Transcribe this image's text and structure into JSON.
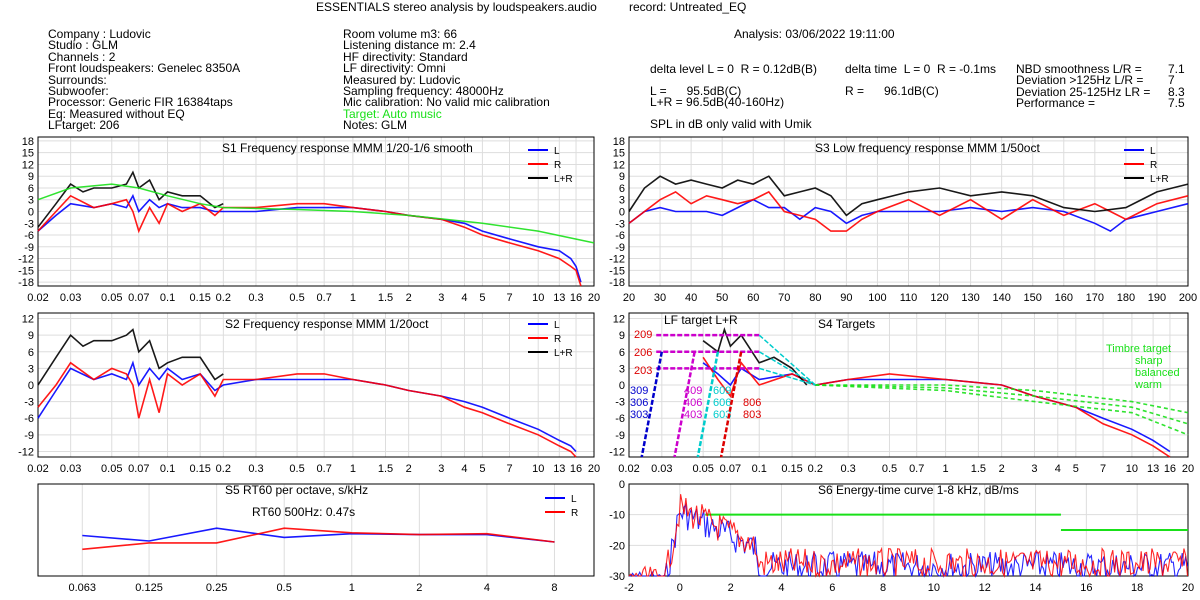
{
  "header": {
    "title": "ESSENTIALS stereo analysis by loudspeakers.audio",
    "record": "record: Untreated_EQ",
    "analysis": "Analysis: 03/06/2022 19:11:00",
    "col1": [
      "Company : Ludovic",
      "Studio : GLM",
      "Channels : 2",
      "Front loudspeakers: Genelec 8350A",
      "Surrounds:",
      "Subwoofer:",
      "Processor: Generic FIR 16384taps",
      "Eq: Measured without EQ",
      "LFtarget: 206"
    ],
    "col2": [
      "Room volume m3: 66",
      "Listening distance m: 2.4",
      "HF directivity: Standard",
      "LF directivity: Omni",
      "Measured by: Ludovic",
      "Sampling frequency: 48000Hz",
      "Mic calibration: No valid mic calibration"
    ],
    "col2_target": "Target: Auto music",
    "col2_notes": "Notes: GLM",
    "delta_level": "delta level L = 0  R = 0.12dB(B)",
    "delta_time": "delta time  L = 0  R = -0.1ms",
    "spl_l": "L =      95.5dB(C)",
    "spl_r": "R =      96.1dB(C)",
    "spl_lr": "L+R = 96.5dB(40-160Hz)",
    "spl_note": "SPL in dB only valid with Umik",
    "nbd": [
      {
        "label": "NBD smoothness L/R =",
        "value": "7.1"
      },
      {
        "label": "Deviation >125Hz L/R =",
        "value": "7"
      },
      {
        "label": "Deviation 25-125Hz LR =",
        "value": "8.3"
      },
      {
        "label": "Performance =",
        "value": "7.5"
      }
    ]
  },
  "chart_data": [
    {
      "id": "S1",
      "type": "line",
      "title": "S1  Frequency response MMM 1/20-1/6 smooth",
      "x_scale": "log",
      "xlim": [
        0.02,
        20
      ],
      "ylim": [
        -19,
        19
      ],
      "yticks": [
        18,
        15,
        12,
        9,
        6,
        3,
        0,
        -3,
        -6,
        -9,
        -12,
        -15,
        -18
      ],
      "xticks": [
        "0.02",
        "0.03",
        "0.05",
        "0.07",
        "0.1",
        "0.15",
        "0.2",
        "0.3",
        "0.5",
        "0.7",
        "1",
        "1.5",
        "2",
        "3",
        "4",
        "5",
        "7",
        "10",
        "13",
        "16",
        "20"
      ],
      "legend": [
        "L",
        "R",
        "L+R"
      ],
      "series": [
        {
          "name": "L",
          "color": "#0000ff",
          "x": [
            0.02,
            0.025,
            0.03,
            0.04,
            0.05,
            0.06,
            0.065,
            0.07,
            0.08,
            0.09,
            0.1,
            0.12,
            0.15,
            0.18,
            0.2,
            0.3,
            0.5,
            0.7,
            1,
            1.5,
            2,
            3,
            4,
            5,
            7,
            10,
            13,
            15,
            16,
            17
          ],
          "y": [
            -5,
            -1,
            2,
            1,
            2,
            1,
            4,
            0,
            3,
            1,
            2,
            1,
            1,
            0,
            0,
            0,
            1,
            1,
            1,
            0,
            -1,
            -2,
            -3,
            -5,
            -7,
            -9,
            -10,
            -12,
            -14,
            -18
          ]
        },
        {
          "name": "R",
          "color": "#ff0000",
          "x": [
            0.02,
            0.025,
            0.03,
            0.04,
            0.05,
            0.06,
            0.065,
            0.07,
            0.08,
            0.09,
            0.1,
            0.12,
            0.15,
            0.18,
            0.2,
            0.3,
            0.5,
            0.7,
            1,
            1.5,
            2,
            3,
            4,
            5,
            7,
            10,
            13,
            15,
            16,
            17
          ],
          "y": [
            -5,
            0,
            4,
            1,
            2,
            3,
            0,
            -5,
            1,
            -3,
            2,
            0,
            2,
            -1,
            1,
            1,
            2,
            2,
            1,
            0,
            -1,
            -2,
            -4,
            -6,
            -8,
            -10,
            -12,
            -14,
            -15,
            -19
          ]
        },
        {
          "name": "L+R",
          "color": "#000000",
          "x": [
            0.02,
            0.025,
            0.03,
            0.035,
            0.04,
            0.05,
            0.06,
            0.065,
            0.07,
            0.08,
            0.09,
            0.1,
            0.12,
            0.15,
            0.18,
            0.2
          ],
          "y": [
            -4,
            2,
            7,
            5,
            6,
            6,
            7,
            10,
            6,
            8,
            3,
            5,
            4,
            4,
            1,
            2
          ]
        },
        {
          "name": "target",
          "color": "#19e019",
          "x": [
            0.02,
            0.03,
            0.05,
            0.07,
            0.1,
            0.15,
            0.2,
            0.5,
            1,
            2,
            5,
            10,
            20
          ],
          "y": [
            3,
            6,
            7,
            6,
            4,
            2,
            1,
            0.5,
            0,
            -1,
            -3,
            -5,
            -8
          ]
        }
      ]
    },
    {
      "id": "S3",
      "type": "line",
      "title": "S3  Low frequency response MMM 1/50oct",
      "x_scale": "linear",
      "xlim": [
        20,
        200
      ],
      "ylim": [
        -19,
        19
      ],
      "yticks": [
        18,
        15,
        12,
        9,
        6,
        3,
        0,
        -3,
        -6,
        -9,
        -12,
        -15,
        -18
      ],
      "xticks": [
        "20",
        "30",
        "40",
        "50",
        "60",
        "70",
        "80",
        "90",
        "100",
        "110",
        "120",
        "130",
        "140",
        "150",
        "160",
        "170",
        "180",
        "190",
        "200"
      ],
      "legend": [
        "L",
        "R",
        "L+R"
      ],
      "series": [
        {
          "name": "L",
          "color": "#0000ff",
          "x": [
            20,
            25,
            30,
            35,
            40,
            45,
            50,
            55,
            60,
            65,
            70,
            75,
            80,
            85,
            90,
            95,
            100,
            110,
            120,
            130,
            140,
            150,
            160,
            170,
            175,
            180,
            190,
            200
          ],
          "y": [
            -3,
            0,
            1,
            0,
            0,
            0,
            -1,
            1,
            3,
            1,
            1,
            -2,
            1,
            0,
            -3,
            -1,
            0,
            0,
            0,
            1,
            0,
            1,
            0,
            -3,
            -5,
            -2,
            0,
            2
          ]
        },
        {
          "name": "R",
          "color": "#ff0000",
          "x": [
            20,
            25,
            30,
            35,
            40,
            45,
            50,
            55,
            60,
            65,
            70,
            75,
            80,
            85,
            90,
            95,
            100,
            110,
            120,
            130,
            140,
            150,
            160,
            170,
            175,
            180,
            190,
            200
          ],
          "y": [
            -3,
            0,
            3,
            5,
            2,
            4,
            3,
            2,
            3,
            5,
            0,
            -1,
            -2,
            -5,
            -5,
            -2,
            0,
            3,
            -1,
            3,
            -2,
            3,
            -1,
            2,
            0,
            -2,
            2,
            4
          ]
        },
        {
          "name": "L+R",
          "color": "#000000",
          "x": [
            20,
            25,
            30,
            35,
            40,
            45,
            50,
            55,
            60,
            65,
            70,
            75,
            80,
            85,
            90,
            95,
            100,
            110,
            120,
            130,
            140,
            150,
            160,
            170,
            180,
            190,
            200
          ],
          "y": [
            0,
            6,
            9,
            7,
            8,
            7,
            6,
            8,
            7,
            9,
            4,
            5,
            6,
            4,
            -1,
            2,
            3,
            5,
            6,
            4,
            5,
            4,
            1,
            0,
            1,
            5,
            7
          ]
        }
      ]
    },
    {
      "id": "S2",
      "type": "line",
      "title": "S2  Frequency response MMM 1/20oct",
      "x_scale": "log",
      "xlim": [
        0.02,
        20
      ],
      "ylim": [
        -13,
        13
      ],
      "yticks": [
        12,
        9,
        6,
        3,
        0,
        -3,
        -6,
        -9,
        -12
      ],
      "xticks": [
        "0.02",
        "0.03",
        "0.05",
        "0.07",
        "0.1",
        "0.15",
        "0.2",
        "0.3",
        "0.5",
        "0.7",
        "1",
        "1.5",
        "2",
        "3",
        "4",
        "5",
        "7",
        "10",
        "13",
        "16",
        "20"
      ],
      "legend": [
        "L",
        "R",
        "L+R"
      ],
      "series": [
        {
          "name": "L",
          "color": "#0000ff",
          "x": [
            0.02,
            0.025,
            0.03,
            0.04,
            0.05,
            0.06,
            0.065,
            0.07,
            0.08,
            0.09,
            0.1,
            0.12,
            0.15,
            0.18,
            0.2,
            0.3,
            0.5,
            0.7,
            1,
            1.5,
            2,
            3,
            4,
            5,
            7,
            10,
            13,
            15,
            16
          ],
          "y": [
            -6,
            -1,
            3,
            1,
            2,
            1,
            4,
            0,
            3,
            1,
            3,
            1,
            2,
            -1,
            0,
            1,
            1,
            1,
            1,
            0,
            -1,
            -2,
            -3,
            -4,
            -6,
            -8,
            -10,
            -11,
            -12
          ]
        },
        {
          "name": "R",
          "color": "#ff0000",
          "x": [
            0.02,
            0.025,
            0.03,
            0.04,
            0.05,
            0.06,
            0.065,
            0.07,
            0.08,
            0.09,
            0.1,
            0.12,
            0.15,
            0.18,
            0.2,
            0.3,
            0.5,
            0.7,
            1,
            1.5,
            2,
            3,
            4,
            5,
            7,
            10,
            13,
            15,
            16
          ],
          "y": [
            -4,
            0,
            4,
            1,
            3,
            2,
            0,
            -6,
            1,
            -5,
            2,
            0,
            2,
            -2,
            1,
            1,
            2,
            2,
            1,
            0,
            -1,
            -2,
            -4,
            -5,
            -7,
            -9,
            -11,
            -12,
            -13
          ]
        },
        {
          "name": "L+R",
          "color": "#000000",
          "x": [
            0.02,
            0.025,
            0.03,
            0.035,
            0.04,
            0.05,
            0.06,
            0.065,
            0.07,
            0.08,
            0.09,
            0.1,
            0.12,
            0.15,
            0.18,
            0.2
          ],
          "y": [
            0,
            5,
            9,
            7,
            8,
            8,
            9,
            10,
            6,
            8,
            3,
            4,
            5,
            5,
            1,
            2
          ]
        }
      ]
    },
    {
      "id": "S4",
      "type": "line",
      "title": "S4 Targets",
      "x_scale": "log",
      "xlim": [
        0.02,
        20
      ],
      "ylim": [
        -13,
        13
      ],
      "yticks": [
        12,
        9,
        6,
        3,
        0,
        -3,
        -6,
        -9,
        -12
      ],
      "xticks": [
        "0.02",
        "0.03",
        "0.05",
        "0.07",
        "0.1",
        "0.15",
        "0.2",
        "0.3",
        "0.5",
        "0.7",
        "1",
        "1.5",
        "2",
        "3",
        "4",
        "5",
        "7",
        "10",
        "13",
        "16",
        "20"
      ],
      "annotations": [
        "LF target L+R",
        "Timbre target",
        "sharp",
        "balanced",
        "warm",
        "209",
        "206",
        "203",
        "309",
        "306",
        "303",
        "409",
        "406",
        "403",
        "609",
        "606",
        "603",
        "806",
        "803"
      ],
      "series": [
        {
          "name": "L",
          "color": "#0000ff",
          "x": [
            0.05,
            0.06,
            0.07,
            0.08,
            0.1,
            0.15,
            0.2,
            0.3,
            0.5,
            1,
            2,
            3,
            5,
            7,
            10,
            13,
            16
          ],
          "y": [
            4,
            2,
            0,
            3,
            1,
            2,
            0,
            1,
            1,
            1,
            0,
            -2,
            -4,
            -6,
            -8,
            -10,
            -12
          ]
        },
        {
          "name": "R",
          "color": "#ff0000",
          "x": [
            0.05,
            0.06,
            0.07,
            0.08,
            0.1,
            0.15,
            0.2,
            0.3,
            0.5,
            1,
            2,
            3,
            5,
            7,
            10,
            13,
            16
          ],
          "y": [
            5,
            1,
            -2,
            4,
            0,
            2,
            0,
            1,
            2,
            1,
            0,
            -2,
            -4,
            -7,
            -9,
            -11,
            -13
          ]
        },
        {
          "name": "L+R",
          "color": "#000000",
          "x": [
            0.05,
            0.06,
            0.065,
            0.07,
            0.08,
            0.1,
            0.12,
            0.15,
            0.18
          ],
          "y": [
            8,
            6,
            10,
            7,
            9,
            4,
            5,
            3,
            0
          ]
        },
        {
          "name": "sharp",
          "color": "#19e019",
          "x": [
            0.2,
            1,
            3,
            10,
            20
          ],
          "y": [
            0,
            0,
            -1,
            -3,
            -5
          ]
        },
        {
          "name": "balanced",
          "color": "#19e019",
          "x": [
            0.2,
            1,
            3,
            10,
            20
          ],
          "y": [
            0,
            -0.5,
            -2,
            -4,
            -7
          ]
        },
        {
          "name": "warm",
          "color": "#19e019",
          "x": [
            0.2,
            1,
            3,
            10,
            20
          ],
          "y": [
            0,
            -1,
            -3,
            -5,
            -9
          ]
        }
      ]
    },
    {
      "id": "S5",
      "type": "line",
      "title": "S5  RT60 per octave, s/kHz",
      "annotation": "RT60 500Hz: 0.47s",
      "x_scale": "log",
      "xlim": [
        0.04,
        12
      ],
      "ylim": [
        0,
        1
      ],
      "xticks": [
        "0.063",
        "0.125",
        "0.25",
        "0.5",
        "1",
        "2",
        "4",
        "8"
      ],
      "legend": [
        "L",
        "R"
      ],
      "series": [
        {
          "name": "L",
          "color": "#0000ff",
          "x": [
            0.063,
            0.125,
            0.25,
            0.5,
            1,
            2,
            4,
            8
          ],
          "y": [
            0.44,
            0.38,
            0.52,
            0.42,
            0.46,
            0.45,
            0.45,
            0.37
          ]
        },
        {
          "name": "R",
          "color": "#ff0000",
          "x": [
            0.063,
            0.125,
            0.25,
            0.5,
            1,
            2,
            4,
            8
          ],
          "y": [
            0.29,
            0.36,
            0.36,
            0.52,
            0.47,
            0.45,
            0.46,
            0.37
          ]
        }
      ]
    },
    {
      "id": "S6",
      "type": "line",
      "title": "S6  Energy-time curve 1-8 kHz, dB/ms",
      "x_scale": "linear",
      "xlim": [
        -2,
        20
      ],
      "ylim": [
        -30,
        0
      ],
      "yticks": [
        0,
        -10,
        -20,
        -30
      ],
      "xticks": [
        "-2",
        "0",
        "2",
        "4",
        "6",
        "8",
        "10",
        "12",
        "14",
        "16",
        "18",
        "20"
      ],
      "series": [
        {
          "name": "target",
          "color": "#19e019",
          "segments": [
            [
              [
                1,
                -10
              ],
              [
                15,
                -10
              ]
            ],
            [
              [
                15,
                -15
              ],
              [
                20,
                -15
              ]
            ]
          ]
        }
      ]
    }
  ]
}
